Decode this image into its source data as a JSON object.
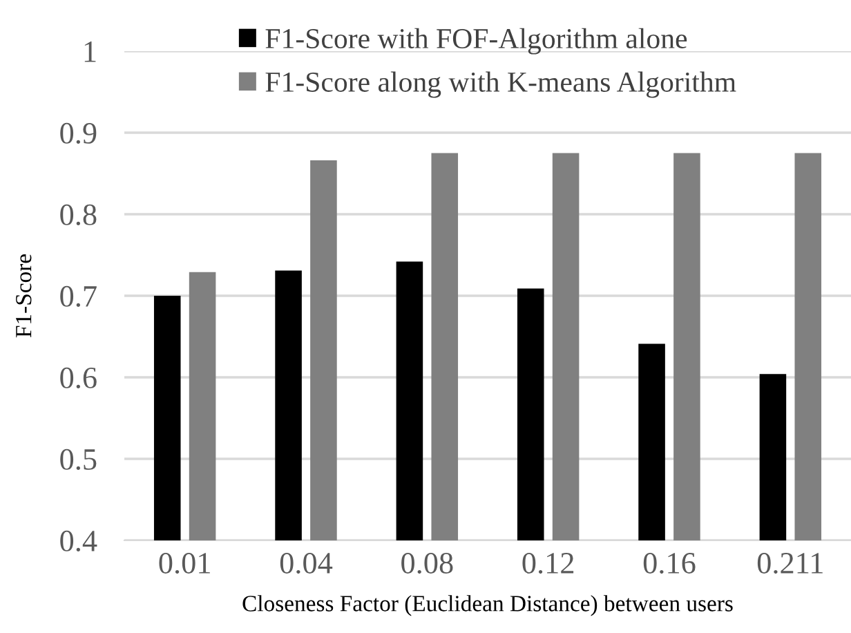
{
  "chart_data": {
    "type": "bar",
    "xlabel": "Closeness Factor (Euclidean Distance) between users",
    "ylabel": "F1-Score",
    "categories": [
      "0.01",
      "0.04",
      "0.08",
      "0.12",
      "0.16",
      "0.211"
    ],
    "series": [
      {
        "name": "F1-Score with FOF-Algorithm alone",
        "color": "#000000",
        "values": [
          0.7,
          0.731,
          0.742,
          0.709,
          0.641,
          0.604
        ]
      },
      {
        "name": "F1-Score along with K-means Algorithm",
        "color": "#808080",
        "values": [
          0.729,
          0.866,
          0.875,
          0.875,
          0.875,
          0.875
        ]
      }
    ],
    "ylim": [
      0.4,
      1
    ],
    "yticks": [
      0.4,
      0.5,
      0.6,
      0.7,
      0.8,
      0.9,
      1
    ],
    "grid": "y",
    "legend": "top"
  }
}
